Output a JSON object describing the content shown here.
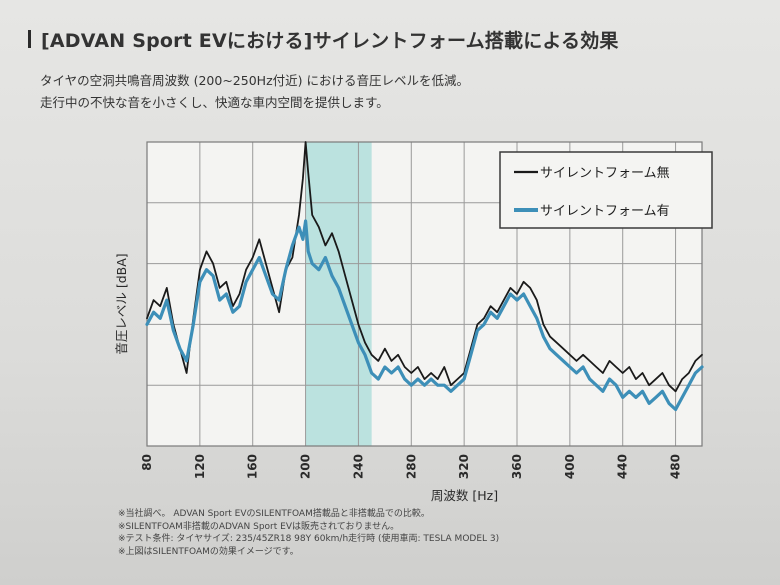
{
  "header": {
    "title": "[ADVAN Sport EVにおける]サイレントフォーム搭載による効果"
  },
  "intro": {
    "line1": "タイヤの空洞共鳴音周波数 (200~250Hz付近) における音圧レベルを低減。",
    "line2": "走行中の不快な音を小さくし、快適な車内空間を提供します。"
  },
  "notes": [
    "※当社調べ。 ADVAN Sport EVのSILENTFOAM搭載品と非搭載品での比較。",
    "※SILENTFOAM非搭載のADVAN Sport EVは販売されておりません。",
    "※テスト条件: タイヤサイズ: 235/45ZR18 98Y 60km/h走行時 (使用車両: TESLA MODEL 3)",
    "※上図はSILENTFOAMの効果イメージです。"
  ],
  "colors": {
    "series_without": "#1a1a1a",
    "series_with": "#3d8fb8",
    "highlight_band": "#a8dcd8"
  },
  "chart_data": {
    "type": "line",
    "title": "",
    "xlabel": "周波数 [Hz]",
    "ylabel": "音圧レベル [dBA]",
    "xlim": [
      80,
      500
    ],
    "ylim": [
      0,
      5
    ],
    "x_ticks": [
      80,
      120,
      160,
      200,
      240,
      280,
      320,
      360,
      400,
      440,
      480
    ],
    "highlight_range": [
      200,
      250
    ],
    "grid": true,
    "legend_position": "top-right",
    "y_tick_labels_shown": false,
    "series": [
      {
        "name": "サイレントフォーム無",
        "x": [
          80,
          85,
          90,
          95,
          100,
          105,
          110,
          115,
          120,
          125,
          130,
          135,
          140,
          145,
          150,
          155,
          160,
          165,
          170,
          175,
          180,
          185,
          190,
          195,
          198,
          200,
          202,
          205,
          210,
          215,
          220,
          225,
          230,
          235,
          240,
          245,
          250,
          255,
          260,
          265,
          270,
          275,
          280,
          285,
          290,
          295,
          300,
          305,
          310,
          315,
          320,
          325,
          330,
          335,
          340,
          345,
          350,
          355,
          360,
          365,
          370,
          375,
          380,
          385,
          390,
          395,
          400,
          405,
          410,
          415,
          420,
          425,
          430,
          435,
          440,
          445,
          450,
          455,
          460,
          465,
          470,
          475,
          480,
          485,
          490,
          495,
          500
        ],
        "values": [
          2.1,
          2.4,
          2.3,
          2.6,
          2.0,
          1.6,
          1.2,
          2.1,
          2.9,
          3.2,
          3.0,
          2.6,
          2.7,
          2.3,
          2.5,
          2.9,
          3.1,
          3.4,
          3.0,
          2.6,
          2.2,
          2.9,
          3.1,
          3.8,
          4.4,
          5.0,
          4.5,
          3.8,
          3.6,
          3.3,
          3.5,
          3.2,
          2.8,
          2.4,
          2.0,
          1.7,
          1.5,
          1.4,
          1.6,
          1.4,
          1.5,
          1.3,
          1.2,
          1.3,
          1.1,
          1.2,
          1.1,
          1.3,
          1.0,
          1.1,
          1.2,
          1.6,
          2.0,
          2.1,
          2.3,
          2.2,
          2.4,
          2.6,
          2.5,
          2.7,
          2.6,
          2.4,
          2.0,
          1.8,
          1.7,
          1.6,
          1.5,
          1.4,
          1.5,
          1.4,
          1.3,
          1.2,
          1.4,
          1.3,
          1.2,
          1.3,
          1.1,
          1.2,
          1.0,
          1.1,
          1.2,
          1.0,
          0.9,
          1.1,
          1.2,
          1.4,
          1.5
        ]
      },
      {
        "name": "サイレントフォーム有",
        "x": [
          80,
          85,
          90,
          95,
          100,
          105,
          110,
          115,
          120,
          125,
          130,
          135,
          140,
          145,
          150,
          155,
          160,
          165,
          170,
          175,
          180,
          185,
          190,
          195,
          198,
          200,
          202,
          205,
          210,
          215,
          220,
          225,
          230,
          235,
          240,
          245,
          250,
          255,
          260,
          265,
          270,
          275,
          280,
          285,
          290,
          295,
          300,
          305,
          310,
          315,
          320,
          325,
          330,
          335,
          340,
          345,
          350,
          355,
          360,
          365,
          370,
          375,
          380,
          385,
          390,
          395,
          400,
          405,
          410,
          415,
          420,
          425,
          430,
          435,
          440,
          445,
          450,
          455,
          460,
          465,
          470,
          475,
          480,
          485,
          490,
          495,
          500
        ],
        "values": [
          2.0,
          2.2,
          2.1,
          2.4,
          1.9,
          1.6,
          1.4,
          2.0,
          2.7,
          2.9,
          2.8,
          2.4,
          2.5,
          2.2,
          2.3,
          2.7,
          2.9,
          3.1,
          2.8,
          2.5,
          2.4,
          2.9,
          3.3,
          3.6,
          3.4,
          3.7,
          3.2,
          3.0,
          2.9,
          3.1,
          2.8,
          2.6,
          2.3,
          2.0,
          1.7,
          1.5,
          1.2,
          1.1,
          1.3,
          1.2,
          1.3,
          1.1,
          1.0,
          1.1,
          1.0,
          1.1,
          1.0,
          1.0,
          0.9,
          1.0,
          1.1,
          1.5,
          1.9,
          2.0,
          2.2,
          2.1,
          2.3,
          2.5,
          2.4,
          2.5,
          2.3,
          2.1,
          1.8,
          1.6,
          1.5,
          1.4,
          1.3,
          1.2,
          1.3,
          1.1,
          1.0,
          0.9,
          1.1,
          1.0,
          0.8,
          0.9,
          0.8,
          0.9,
          0.7,
          0.8,
          0.9,
          0.7,
          0.6,
          0.8,
          1.0,
          1.2,
          1.3
        ]
      }
    ]
  }
}
